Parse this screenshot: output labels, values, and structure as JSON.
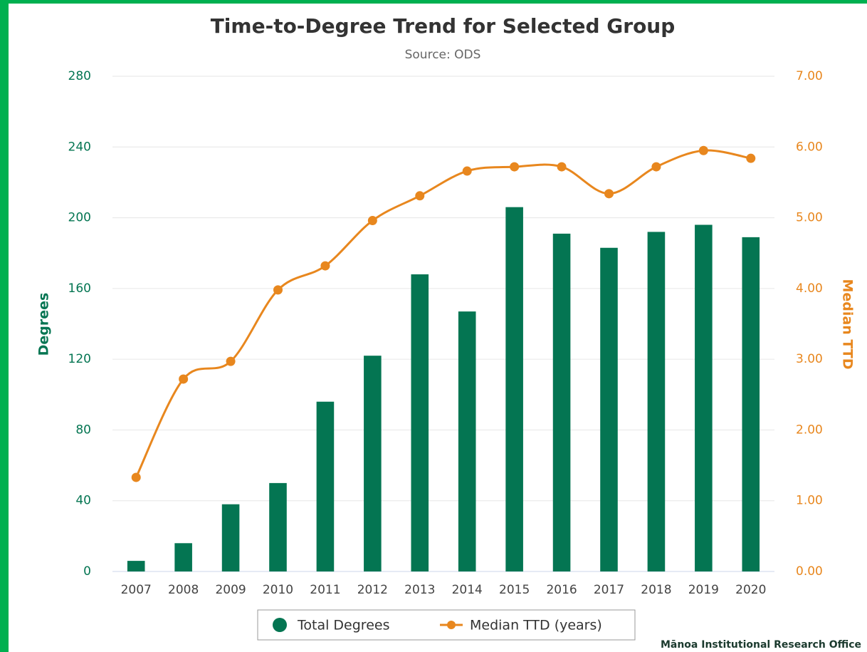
{
  "chart_data": {
    "type": "bar",
    "title": "Time-to-Degree Trend for Selected Group",
    "subtitle": "Source: ODS",
    "y_label": "Degrees",
    "y2_label": "Median TTD",
    "categories": [
      "2007",
      "2008",
      "2009",
      "2010",
      "2011",
      "2012",
      "2013",
      "2014",
      "2015",
      "2016",
      "2017",
      "2018",
      "2019",
      "2020"
    ],
    "series": [
      {
        "name": "Total Degrees",
        "type": "bar",
        "color": "#047552",
        "values": [
          6,
          16,
          38,
          50,
          96,
          122,
          168,
          147,
          206,
          191,
          183,
          192,
          196,
          189
        ]
      },
      {
        "name": "Median TTD (years)",
        "type": "line",
        "axis": "y2",
        "color": "#e8871e",
        "values": [
          1.33,
          2.72,
          2.97,
          3.98,
          4.32,
          4.96,
          5.31,
          5.66,
          5.72,
          5.72,
          5.34,
          5.72,
          5.95,
          5.84
        ]
      }
    ],
    "ylim": [
      0,
      280
    ],
    "yticks": [
      0,
      40,
      80,
      120,
      160,
      200,
      240,
      280
    ],
    "y2lim": [
      0,
      7
    ],
    "y2ticks": [
      {
        "value": 0,
        "label": "0.00"
      },
      {
        "value": 1,
        "label": "1.00"
      },
      {
        "value": 2,
        "label": "2.00"
      },
      {
        "value": 3,
        "label": "3.00"
      },
      {
        "value": 4,
        "label": "4.00"
      },
      {
        "value": 5,
        "label": "5.00"
      },
      {
        "value": 6,
        "label": "6.00"
      },
      {
        "value": 7,
        "label": "7.00"
      }
    ],
    "grid": true,
    "legend": "bottom"
  },
  "footer": "Mānoa Institutional Research Office"
}
